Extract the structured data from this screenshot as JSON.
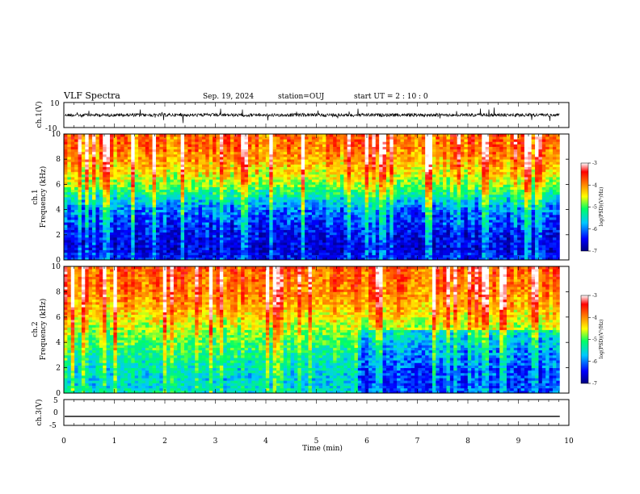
{
  "header": {
    "title": "VLF Spectra",
    "date": "Sep. 19, 2024",
    "station": "station=OUJ",
    "start": "start  UT  =   2 : 10 : 0"
  },
  "chart_data": [
    {
      "type": "line",
      "title": "",
      "ylabel": "ch.1(V)",
      "ylim": [
        -10,
        10
      ],
      "yticks": [
        "10",
        "-10"
      ],
      "x_range": [
        0,
        10
      ],
      "baseline_value": 0,
      "color": "#000000"
    },
    {
      "type": "heatmap",
      "title": "",
      "ylabel_line1": "ch.1",
      "ylabel_line2": "Frequency  (kHz)",
      "ylim": [
        0,
        10
      ],
      "yticks": [
        "0",
        "2",
        "4",
        "6",
        "8",
        "10"
      ],
      "x_range": [
        0,
        10
      ],
      "data_end_min": 9.82,
      "colorbar": {
        "label": "log(PSD)(V²/Hz)",
        "range": [
          -7,
          -3
        ],
        "ticks": [
          "-3",
          "-4",
          "-5",
          "-6",
          "-7"
        ],
        "colors": [
          "#00007f",
          "#0000ff",
          "#00c8ff",
          "#00ff64",
          "#ffff00",
          "#ff8000",
          "#ff0000",
          "#ffffff"
        ]
      },
      "spectral_profile": {
        "frequency_khz": [
          0,
          1,
          2,
          3,
          4,
          5,
          6,
          7,
          8,
          9,
          10
        ],
        "median_log_psd": [
          -6.4,
          -6.6,
          -6.5,
          -6.3,
          -6.1,
          -5.6,
          -5.0,
          -4.6,
          -4.3,
          -4.1,
          -4.0
        ]
      }
    },
    {
      "type": "heatmap",
      "title": "",
      "ylabel_line1": "ch.2",
      "ylabel_line2": "Frequency  (kHz)",
      "ylim": [
        0,
        10
      ],
      "yticks": [
        "0",
        "2",
        "4",
        "6",
        "8",
        "10"
      ],
      "x_range": [
        0,
        10
      ],
      "data_end_min": 9.82,
      "colorbar": {
        "label": "log(PSD)(V²/Hz)",
        "range": [
          -7,
          -3
        ],
        "ticks": [
          "-3",
          "-4",
          "-5",
          "-6",
          "-7"
        ],
        "colors": [
          "#00007f",
          "#0000ff",
          "#00c8ff",
          "#00ff64",
          "#ffff00",
          "#ff8000",
          "#ff0000",
          "#ffffff"
        ]
      },
      "spectral_profile": {
        "frequency_khz": [
          0,
          1,
          2,
          3,
          4,
          5,
          6,
          7,
          8,
          9,
          10
        ],
        "median_log_psd": [
          -5.6,
          -5.7,
          -5.6,
          -5.4,
          -5.2,
          -4.9,
          -4.6,
          -4.3,
          -4.1,
          -4.0,
          -3.9
        ]
      },
      "quieter_after_min": 5.8
    },
    {
      "type": "line",
      "title": "",
      "ylabel": "ch.3(V)",
      "ylim": [
        -5,
        5
      ],
      "yticks": [
        "5",
        "0",
        "-5"
      ],
      "x_range": [
        0,
        10
      ],
      "constant_value": -1.5,
      "color": "#000000"
    }
  ],
  "xaxis": {
    "label": "Time  (min)",
    "ticks": [
      "0",
      "1",
      "2",
      "3",
      "4",
      "5",
      "6",
      "7",
      "8",
      "9",
      "10"
    ]
  }
}
